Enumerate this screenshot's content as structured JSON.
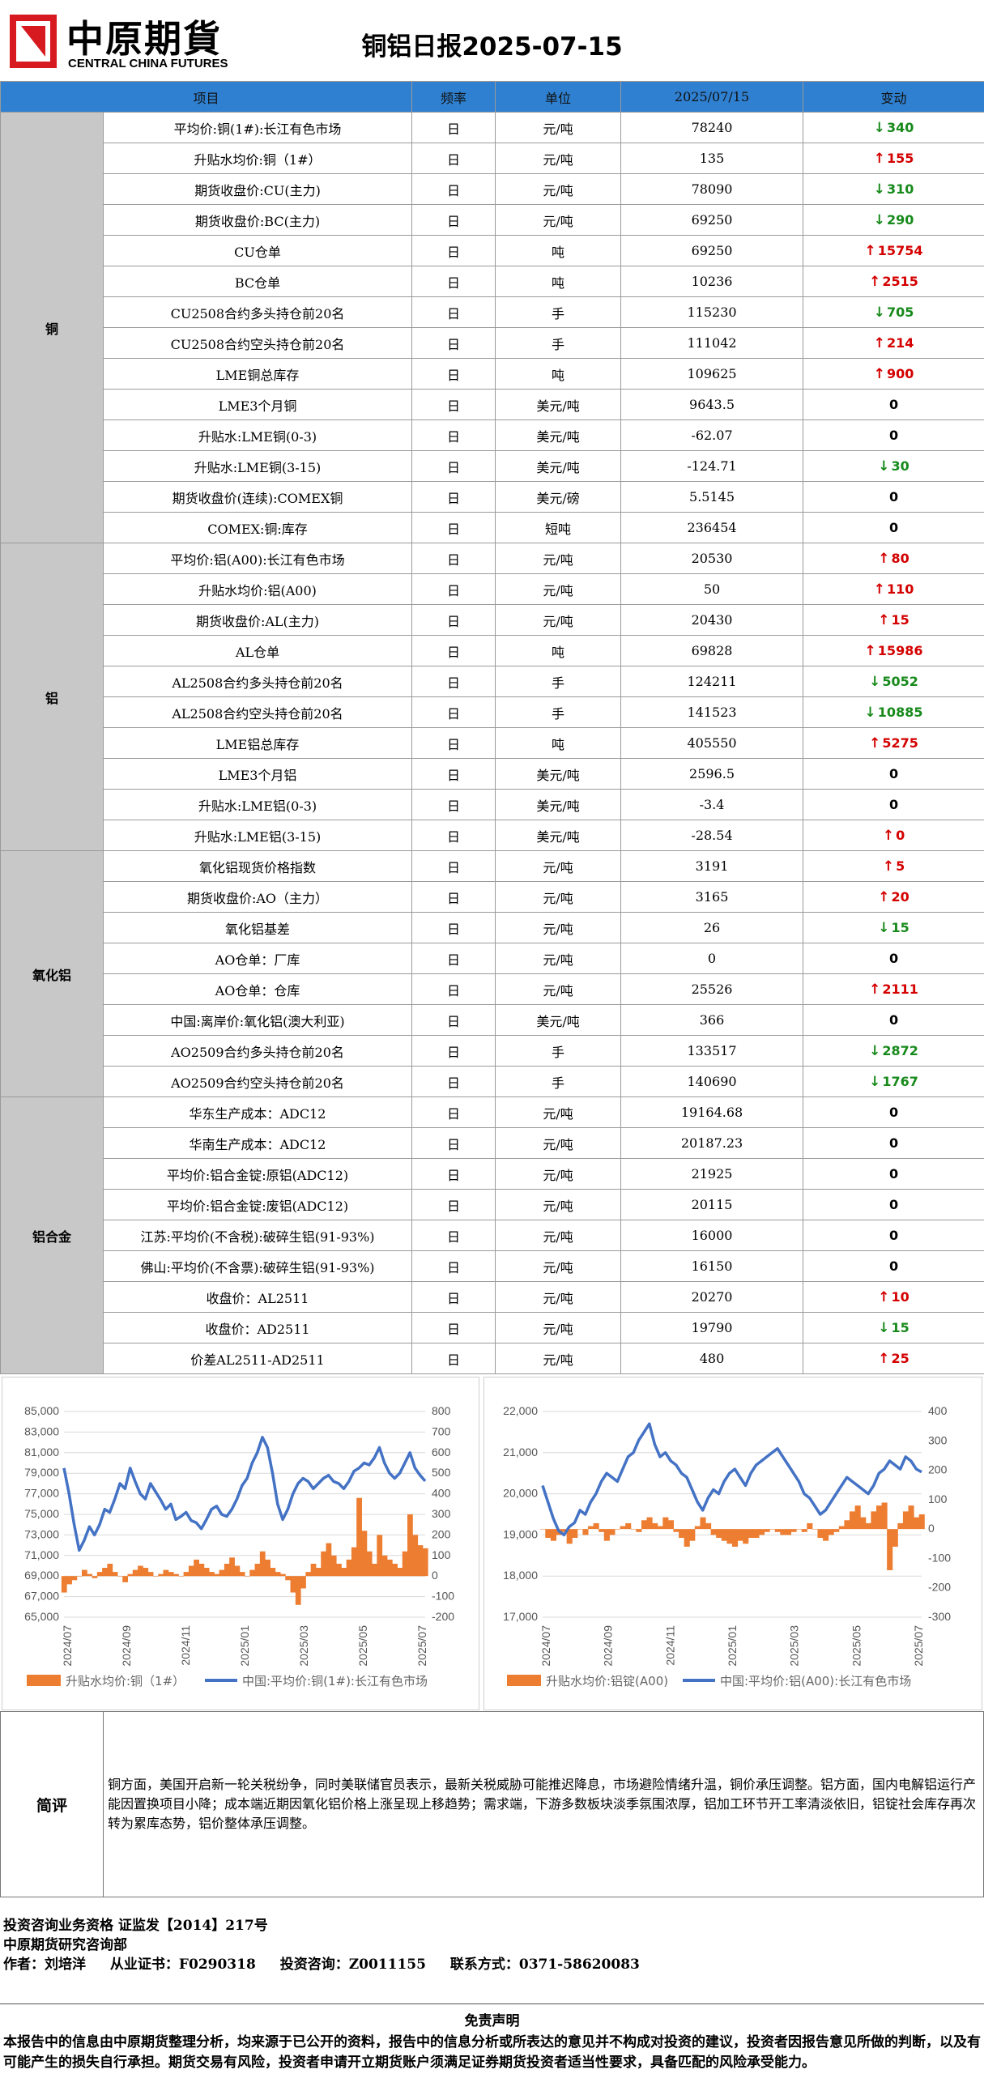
{
  "header": {
    "logo_cn": "中原期貨",
    "logo_en": "CENTRAL CHINA FUTURES",
    "title": "铜铝日报2025-07-15"
  },
  "table": {
    "headers": [
      "项目",
      "频率",
      "单位",
      "2025/07/15",
      "变动"
    ],
    "groups": [
      {
        "name": "铜",
        "rows": [
          {
            "item": "平均价:铜(1#):长江有色市场",
            "freq": "日",
            "unit": "元/吨",
            "value": "78240",
            "dir": "down",
            "change": "340"
          },
          {
            "item": "升贴水均价:铜（1#）",
            "freq": "日",
            "unit": "元/吨",
            "value": "135",
            "dir": "up",
            "change": "155"
          },
          {
            "item": "期货收盘价:CU(主力)",
            "freq": "日",
            "unit": "元/吨",
            "value": "78090",
            "dir": "down",
            "change": "310"
          },
          {
            "item": "期货收盘价:BC(主力)",
            "freq": "日",
            "unit": "元/吨",
            "value": "69250",
            "dir": "down",
            "change": "290"
          },
          {
            "item": "CU仓单",
            "freq": "日",
            "unit": "吨",
            "value": "69250",
            "dir": "up",
            "change": "15754"
          },
          {
            "item": "BC仓单",
            "freq": "日",
            "unit": "吨",
            "value": "10236",
            "dir": "up",
            "change": "2515"
          },
          {
            "item": "CU2508合约多头持仓前20名",
            "freq": "日",
            "unit": "手",
            "value": "115230",
            "dir": "down",
            "change": "705"
          },
          {
            "item": "CU2508合约空头持仓前20名",
            "freq": "日",
            "unit": "手",
            "value": "111042",
            "dir": "up",
            "change": "214"
          },
          {
            "item": "LME铜总库存",
            "freq": "日",
            "unit": "吨",
            "value": "109625",
            "dir": "up",
            "change": "900"
          },
          {
            "item": "LME3个月铜",
            "freq": "日",
            "unit": "美元/吨",
            "value": "9643.5",
            "dir": "flat",
            "change": "0"
          },
          {
            "item": "升贴水:LME铜(0-3)",
            "freq": "日",
            "unit": "美元/吨",
            "value": "-62.07",
            "dir": "flat",
            "change": "0"
          },
          {
            "item": "升贴水:LME铜(3-15)",
            "freq": "日",
            "unit": "美元/吨",
            "value": "-124.71",
            "dir": "down",
            "change": "30"
          },
          {
            "item": "期货收盘价(连续):COMEX铜",
            "freq": "日",
            "unit": "美元/磅",
            "value": "5.5145",
            "dir": "flat",
            "change": "0"
          },
          {
            "item": "COMEX:铜:库存",
            "freq": "日",
            "unit": "短吨",
            "value": "236454",
            "dir": "flat",
            "change": "0"
          }
        ]
      },
      {
        "name": "铝",
        "rows": [
          {
            "item": "平均价:铝(A00):长江有色市场",
            "freq": "日",
            "unit": "元/吨",
            "value": "20530",
            "dir": "up",
            "change": "80"
          },
          {
            "item": "升贴水均价:铝(A00)",
            "freq": "日",
            "unit": "元/吨",
            "value": "50",
            "dir": "up",
            "change": "110"
          },
          {
            "item": "期货收盘价:AL(主力)",
            "freq": "日",
            "unit": "元/吨",
            "value": "20430",
            "dir": "up",
            "change": "15"
          },
          {
            "item": "AL仓单",
            "freq": "日",
            "unit": "吨",
            "value": "69828",
            "dir": "up",
            "change": "15986"
          },
          {
            "item": "AL2508合约多头持仓前20名",
            "freq": "日",
            "unit": "手",
            "value": "124211",
            "dir": "down",
            "change": "5052"
          },
          {
            "item": "AL2508合约空头持仓前20名",
            "freq": "日",
            "unit": "手",
            "value": "141523",
            "dir": "down",
            "change": "10885"
          },
          {
            "item": "LME铝总库存",
            "freq": "日",
            "unit": "吨",
            "value": "405550",
            "dir": "up",
            "change": "5275"
          },
          {
            "item": "LME3个月铝",
            "freq": "日",
            "unit": "美元/吨",
            "value": "2596.5",
            "dir": "flat",
            "change": "0"
          },
          {
            "item": "升贴水:LME铝(0-3)",
            "freq": "日",
            "unit": "美元/吨",
            "value": "-3.4",
            "dir": "flat",
            "change": "0"
          },
          {
            "item": "升贴水:LME铝(3-15)",
            "freq": "日",
            "unit": "美元/吨",
            "value": "-28.54",
            "dir": "up",
            "change": "0"
          }
        ]
      },
      {
        "name": "氧化铝",
        "rows": [
          {
            "item": "氧化铝现货价格指数",
            "freq": "日",
            "unit": "元/吨",
            "value": "3191",
            "dir": "up",
            "change": "5"
          },
          {
            "item": "期货收盘价:AO（主力）",
            "freq": "日",
            "unit": "元/吨",
            "value": "3165",
            "dir": "up",
            "change": "20"
          },
          {
            "item": "氧化铝基差",
            "freq": "日",
            "unit": "元/吨",
            "value": "26",
            "dir": "down",
            "change": "15"
          },
          {
            "item": "AO仓单：厂库",
            "freq": "日",
            "unit": "元/吨",
            "value": "0",
            "dir": "flat",
            "change": "0"
          },
          {
            "item": "AO仓单：仓库",
            "freq": "日",
            "unit": "元/吨",
            "value": "25526",
            "dir": "up",
            "change": "2111"
          },
          {
            "item": "中国:离岸价:氧化铝(澳大利亚)",
            "freq": "日",
            "unit": "美元/吨",
            "value": "366",
            "dir": "flat",
            "change": "0"
          },
          {
            "item": "AO2509合约多头持仓前20名",
            "freq": "日",
            "unit": "手",
            "value": "133517",
            "dir": "down",
            "change": "2872"
          },
          {
            "item": "AO2509合约空头持仓前20名",
            "freq": "日",
            "unit": "手",
            "value": "140690",
            "dir": "down",
            "change": "1767"
          }
        ]
      },
      {
        "name": "铝合金",
        "rows": [
          {
            "item": "华东生产成本：ADC12",
            "freq": "日",
            "unit": "元/吨",
            "value": "19164.68",
            "dir": "flat",
            "change": "0"
          },
          {
            "item": "华南生产成本：ADC12",
            "freq": "日",
            "unit": "元/吨",
            "value": "20187.23",
            "dir": "flat",
            "change": "0"
          },
          {
            "item": "平均价:铝合金锭:原铝(ADC12)",
            "freq": "日",
            "unit": "元/吨",
            "value": "21925",
            "dir": "flat",
            "change": "0"
          },
          {
            "item": "平均价:铝合金锭:废铝(ADC12)",
            "freq": "日",
            "unit": "元/吨",
            "value": "20115",
            "dir": "flat",
            "change": "0"
          },
          {
            "item": "江苏:平均价(不含税):破碎生铝(91-93%)",
            "freq": "日",
            "unit": "元/吨",
            "value": "16000",
            "dir": "flat",
            "change": "0"
          },
          {
            "item": "佛山:平均价(不含票):破碎生铝(91-93%)",
            "freq": "日",
            "unit": "元/吨",
            "value": "16150",
            "dir": "flat",
            "change": "0"
          },
          {
            "item": "收盘价：AL2511",
            "freq": "日",
            "unit": "元/吨",
            "value": "20270",
            "dir": "up",
            "change": "10"
          },
          {
            "item": "收盘价：AD2511",
            "freq": "日",
            "unit": "元/吨",
            "value": "19790",
            "dir": "down",
            "change": "15"
          },
          {
            "item": "价差AL2511-AD2511",
            "freq": "日",
            "unit": "元/吨",
            "value": "480",
            "dir": "up",
            "change": "25"
          }
        ]
      }
    ]
  },
  "chart_data": [
    {
      "type": "line",
      "x_ticks": [
        "2024/07",
        "2024/09",
        "2024/11",
        "2025/01",
        "2025/03",
        "2025/05",
        "2025/07"
      ],
      "left_axis": [
        65000,
        67000,
        69000,
        71000,
        73000,
        75000,
        77000,
        79000,
        81000,
        83000,
        85000
      ],
      "right_axis": [
        -200,
        -100,
        0,
        100,
        200,
        300,
        400,
        500,
        600,
        700,
        800
      ],
      "ylim": [
        65000,
        85000
      ],
      "y2lim": [
        -200,
        800
      ],
      "series": [
        {
          "name": "升贴水均价:铜（1#）",
          "kind": "area",
          "axis": "right",
          "color": "#ed7d31",
          "values": [
            -80,
            -40,
            -20,
            0,
            30,
            10,
            -10,
            20,
            40,
            60,
            20,
            0,
            -30,
            10,
            30,
            50,
            40,
            20,
            0,
            10,
            30,
            20,
            10,
            0,
            20,
            50,
            80,
            60,
            40,
            20,
            10,
            30,
            60,
            90,
            50,
            20,
            0,
            30,
            60,
            120,
            80,
            40,
            20,
            10,
            -20,
            -80,
            -140,
            -60,
            20,
            60,
            40,
            120,
            160,
            100,
            60,
            40,
            80,
            140,
            380,
            220,
            120,
            60,
            200,
            100,
            80,
            60,
            40,
            120,
            300,
            200,
            150,
            135
          ]
        },
        {
          "name": "中国:平均价:铜(1#):长江有色市场",
          "kind": "line",
          "axis": "left",
          "color": "#4472c4",
          "values": [
            79500,
            77000,
            74000,
            71500,
            72500,
            73800,
            73000,
            74000,
            75500,
            75200,
            76500,
            78000,
            77500,
            79500,
            78200,
            77000,
            76500,
            78000,
            77200,
            76400,
            75500,
            76000,
            74500,
            74800,
            75200,
            74400,
            74200,
            73600,
            74500,
            75500,
            75800,
            75000,
            74800,
            75500,
            76500,
            77800,
            78500,
            80000,
            81000,
            82500,
            81500,
            79000,
            76000,
            74500,
            75500,
            77000,
            78000,
            78500,
            78200,
            77500,
            78000,
            78500,
            78800,
            78200,
            78000,
            77500,
            78200,
            79200,
            79500,
            80000,
            79800,
            80500,
            81500,
            80000,
            79000,
            78500,
            79000,
            80000,
            81000,
            79500,
            78800,
            78240
          ]
        }
      ]
    },
    {
      "type": "line",
      "x_ticks": [
        "2024/07",
        "2024/09",
        "2024/11",
        "2025/01",
        "2025/03",
        "2025/05",
        "2025/07"
      ],
      "left_axis": [
        17000,
        18000,
        19000,
        20000,
        21000,
        22000
      ],
      "right_axis": [
        -300,
        -200,
        -100,
        0,
        100,
        200,
        300,
        400
      ],
      "ylim": [
        17000,
        22000
      ],
      "y2lim": [
        -300,
        400
      ],
      "series": [
        {
          "name": "升贴水均价:铝锭(A00)",
          "kind": "area",
          "axis": "right",
          "color": "#ed7d31",
          "values": [
            0,
            -30,
            -40,
            -20,
            -10,
            -50,
            -30,
            0,
            -20,
            10,
            20,
            -10,
            -40,
            -20,
            0,
            10,
            20,
            0,
            -10,
            30,
            40,
            20,
            10,
            40,
            30,
            -10,
            -30,
            -60,
            -40,
            10,
            40,
            20,
            -20,
            -30,
            -40,
            -50,
            -60,
            -40,
            -50,
            -30,
            -30,
            -20,
            -10,
            0,
            -10,
            -20,
            -20,
            -10,
            0,
            -10,
            20,
            0,
            -30,
            -40,
            -20,
            -10,
            10,
            30,
            60,
            80,
            40,
            20,
            60,
            80,
            90,
            -140,
            -60,
            20,
            60,
            80,
            40,
            50
          ]
        },
        {
          "name": "中国:平均价:铝(A00):长江有色市场",
          "kind": "line",
          "axis": "left",
          "color": "#4472c4",
          "values": [
            20200,
            19800,
            19400,
            19100,
            19000,
            19200,
            19300,
            19600,
            19500,
            19800,
            20000,
            20300,
            20500,
            20400,
            20300,
            20600,
            20900,
            21000,
            21300,
            21500,
            21700,
            21200,
            20900,
            21000,
            20800,
            20700,
            20500,
            20400,
            20100,
            19800,
            19600,
            19900,
            20100,
            20000,
            20300,
            20500,
            20600,
            20400,
            20200,
            20500,
            20700,
            20800,
            20900,
            21000,
            21100,
            20900,
            20700,
            20500,
            20300,
            20000,
            19900,
            19700,
            19500,
            19600,
            19800,
            20000,
            20200,
            20400,
            20300,
            20200,
            20100,
            20000,
            20200,
            20500,
            20600,
            20800,
            20700,
            20600,
            20900,
            20800,
            20600,
            20530
          ]
        }
      ]
    }
  ],
  "note": {
    "label": "简评",
    "text": "铜方面，美国开启新一轮关税纷争，同时美联储官员表示，最新关税威胁可能推迟降息，市场避险情绪升温，铜价承压调整。铝方面，国内电解铝运行产能因置换项目小降；成本端近期因氧化铝价格上涨呈现上移趋势；需求端，下游多数板块淡季氛围浓厚，铝加工环节开工率清淡依旧，铝锭社会库存再次转为累库态势，铝价整体承压调整。"
  },
  "footer": {
    "line1": "投资咨询业务资格    证监发【2014】217号",
    "line2": "中原期货研究咨询部",
    "author_label": "作者：刘培洋",
    "cert_label": "从业证书：F0290318",
    "advisor_label": "投资咨询：Z0011155",
    "contact_label": "联系方式：0371-58620083"
  },
  "disclaimer": {
    "title": "免责声明",
    "text": "本报告中的信息由中原期货整理分析，均来源于已公开的资料，报告中的信息分析或所表达的意见并不构成对投资的建议，投资者因报告意见所做的判断，以及有可能产生的损失自行承担。期货交易有风险，投资者申请开立期货账户须满足证券期货投资者适当性要求，具备匹配的风险承受能力。"
  }
}
